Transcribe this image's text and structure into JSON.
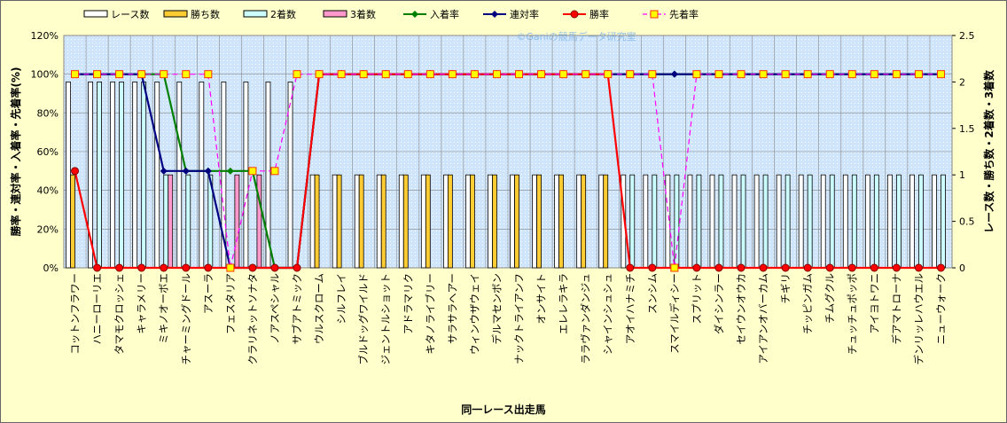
{
  "chart_data": {
    "type": "combo",
    "watermark": "©Ganiの競馬データ研究室",
    "x_label": "同一レース出走馬",
    "y_label": "勝率・連対率・入着率・先着率(%)",
    "y2_label": "レース数・勝ち数・2着数・3着数",
    "categories": [
      "コットンフラワー",
      "ハニーローリエ",
      "タマモクロッシェ",
      "キャラメリー",
      "ミキノオーボエ",
      "チャーミングドール",
      "アスーラ",
      "フェスタリア",
      "クラリネットソナタ",
      "ノアスペシャル",
      "サブアトミック",
      "ウルスクローム",
      "シルフレイ",
      "ブルドッグワイルド",
      "ジェントルショット",
      "アドラマリク",
      "キタノライブリー",
      "サラサラヘアー",
      "ウィンウザウェイ",
      "デルマセンボン",
      "ナックトライアンフ",
      "オンサイト",
      "エレレラキラ",
      "ララヴァンダンジュ",
      "シャインシュシュ",
      "アオイハナミチ",
      "スンシム",
      "スマイルディシー",
      "スプリット",
      "ダイシンラー",
      "セイウンオウカ",
      "アイアンオバーカム",
      "チギリ",
      "チッピンガム",
      "チムグクル",
      "チュッチュポッポ",
      "アイヨトワニ",
      "デアマトローナ",
      "デンリッレハウエル",
      "ニューウォーク"
    ],
    "ylim": [
      0,
      120
    ],
    "yticks": [
      {
        "value": 0,
        "label": "0%"
      },
      {
        "value": 20,
        "label": "20%"
      },
      {
        "value": 40,
        "label": "40%"
      },
      {
        "value": 60,
        "label": "60%"
      },
      {
        "value": 80,
        "label": "80%"
      },
      {
        "value": 100,
        "label": "100%"
      },
      {
        "value": 120,
        "label": "120%"
      }
    ],
    "y2lim": [
      0,
      2.5
    ],
    "y2ticks": [
      0,
      0.5,
      1,
      1.5,
      2,
      2.5
    ],
    "grid": true,
    "series": [
      {
        "name": "レース数",
        "type": "bar",
        "axis": "y2",
        "color": "#ffffff",
        "values": [
          2,
          2,
          2,
          2,
          2,
          2,
          2,
          2,
          2,
          2,
          2,
          1,
          1,
          1,
          1,
          1,
          1,
          1,
          1,
          1,
          1,
          1,
          1,
          1,
          1,
          1,
          1,
          1,
          1,
          1,
          1,
          1,
          1,
          1,
          1,
          1,
          1,
          1,
          1,
          1
        ]
      },
      {
        "name": "勝ち数",
        "type": "bar",
        "axis": "y2",
        "color": "#ffcc33",
        "values": [
          1,
          0,
          0,
          0,
          0,
          0,
          0,
          0,
          0,
          0,
          0,
          1,
          1,
          1,
          1,
          1,
          1,
          1,
          1,
          1,
          1,
          1,
          1,
          1,
          1,
          0,
          0,
          0,
          0,
          0,
          0,
          0,
          0,
          0,
          0,
          0,
          0,
          0,
          0,
          0
        ]
      },
      {
        "name": "2着数",
        "type": "bar",
        "axis": "y2",
        "color": "#ccffff",
        "values": [
          0,
          2,
          2,
          2,
          1,
          1,
          1,
          0,
          0,
          0,
          0,
          0,
          0,
          0,
          0,
          0,
          0,
          0,
          0,
          0,
          0,
          0,
          0,
          0,
          0,
          1,
          1,
          1,
          1,
          1,
          1,
          1,
          1,
          1,
          1,
          1,
          1,
          1,
          1,
          1
        ]
      },
      {
        "name": "3着数",
        "type": "bar",
        "axis": "y2",
        "color": "#ff99cc",
        "values": [
          0,
          0,
          0,
          0,
          1,
          0,
          0,
          1,
          1,
          0,
          0,
          0,
          0,
          0,
          0,
          0,
          0,
          0,
          0,
          0,
          0,
          0,
          0,
          0,
          0,
          0,
          0,
          0,
          0,
          0,
          0,
          0,
          0,
          0,
          0,
          0,
          0,
          0,
          0,
          0
        ]
      },
      {
        "name": "入着率",
        "type": "line",
        "color": "#008000",
        "marker": "diamond",
        "values": [
          100,
          100,
          100,
          100,
          100,
          50,
          50,
          50,
          50,
          0,
          0,
          100,
          100,
          100,
          100,
          100,
          100,
          100,
          100,
          100,
          100,
          100,
          100,
          100,
          100,
          100,
          100,
          100,
          100,
          100,
          100,
          100,
          100,
          100,
          100,
          100,
          100,
          100,
          100,
          100
        ]
      },
      {
        "name": "連対率",
        "type": "line",
        "color": "#000080",
        "marker": "diamond",
        "values": [
          100,
          100,
          100,
          100,
          50,
          50,
          50,
          0,
          0,
          0,
          0,
          100,
          100,
          100,
          100,
          100,
          100,
          100,
          100,
          100,
          100,
          100,
          100,
          100,
          100,
          100,
          100,
          100,
          100,
          100,
          100,
          100,
          100,
          100,
          100,
          100,
          100,
          100,
          100,
          100
        ]
      },
      {
        "name": "勝率",
        "type": "line",
        "color": "#ff0000",
        "marker": "circle",
        "values": [
          50,
          0,
          0,
          0,
          0,
          0,
          0,
          0,
          0,
          0,
          0,
          100,
          100,
          100,
          100,
          100,
          100,
          100,
          100,
          100,
          100,
          100,
          100,
          100,
          100,
          0,
          0,
          0,
          0,
          0,
          0,
          0,
          0,
          0,
          0,
          0,
          0,
          0,
          0,
          0
        ]
      },
      {
        "name": "先着率",
        "type": "line",
        "color": "#ff00ff",
        "marker": "square",
        "dashed": true,
        "values": [
          100,
          100,
          100,
          100,
          100,
          100,
          100,
          0,
          50,
          50,
          100,
          100,
          100,
          100,
          100,
          100,
          100,
          100,
          100,
          100,
          100,
          100,
          100,
          100,
          100,
          100,
          100,
          0,
          100,
          100,
          100,
          100,
          100,
          100,
          100,
          100,
          100,
          100,
          100,
          100
        ]
      }
    ]
  }
}
